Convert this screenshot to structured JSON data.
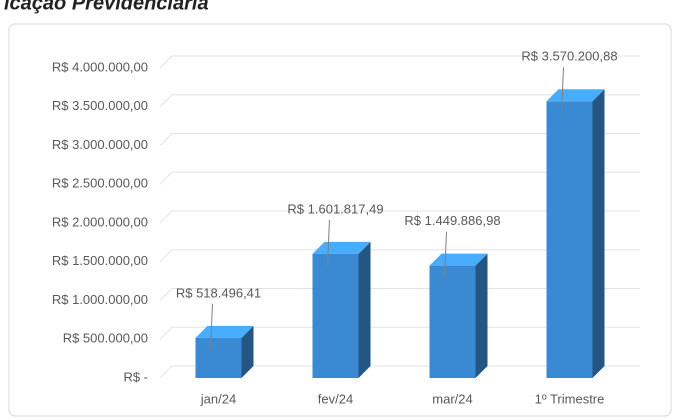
{
  "chart_data": {
    "type": "bar3d",
    "title": "icação Previdenciária",
    "categories": [
      "jan/24",
      "fev/24",
      "mar/24",
      "1º Trimestre"
    ],
    "values": [
      518496.41,
      1601817.49,
      1449886.98,
      3570200.88
    ],
    "value_labels": [
      "R$ 518.496,41",
      "R$ 1.601.817,49",
      "R$ 1.449.886,98",
      "R$ 3.570.200,88"
    ],
    "color": "#3a8ad3",
    "ylim": [
      0,
      4000000
    ],
    "yticks": [
      {
        "value": 0,
        "label": "R$ -"
      },
      {
        "value": 500000,
        "label": "R$ 500.000,00"
      },
      {
        "value": 1000000,
        "label": "R$ 1.000.000,00"
      },
      {
        "value": 1500000,
        "label": "R$ 1.500.000,00"
      },
      {
        "value": 2000000,
        "label": "R$ 2.000.000,00"
      },
      {
        "value": 2500000,
        "label": "R$ 2.500.000,00"
      },
      {
        "value": 3000000,
        "label": "R$ 3.000.000,00"
      },
      {
        "value": 3500000,
        "label": "R$ 3.500.000,00"
      },
      {
        "value": 4000000,
        "label": "R$ 4.000.000,00"
      }
    ],
    "grid": true
  }
}
